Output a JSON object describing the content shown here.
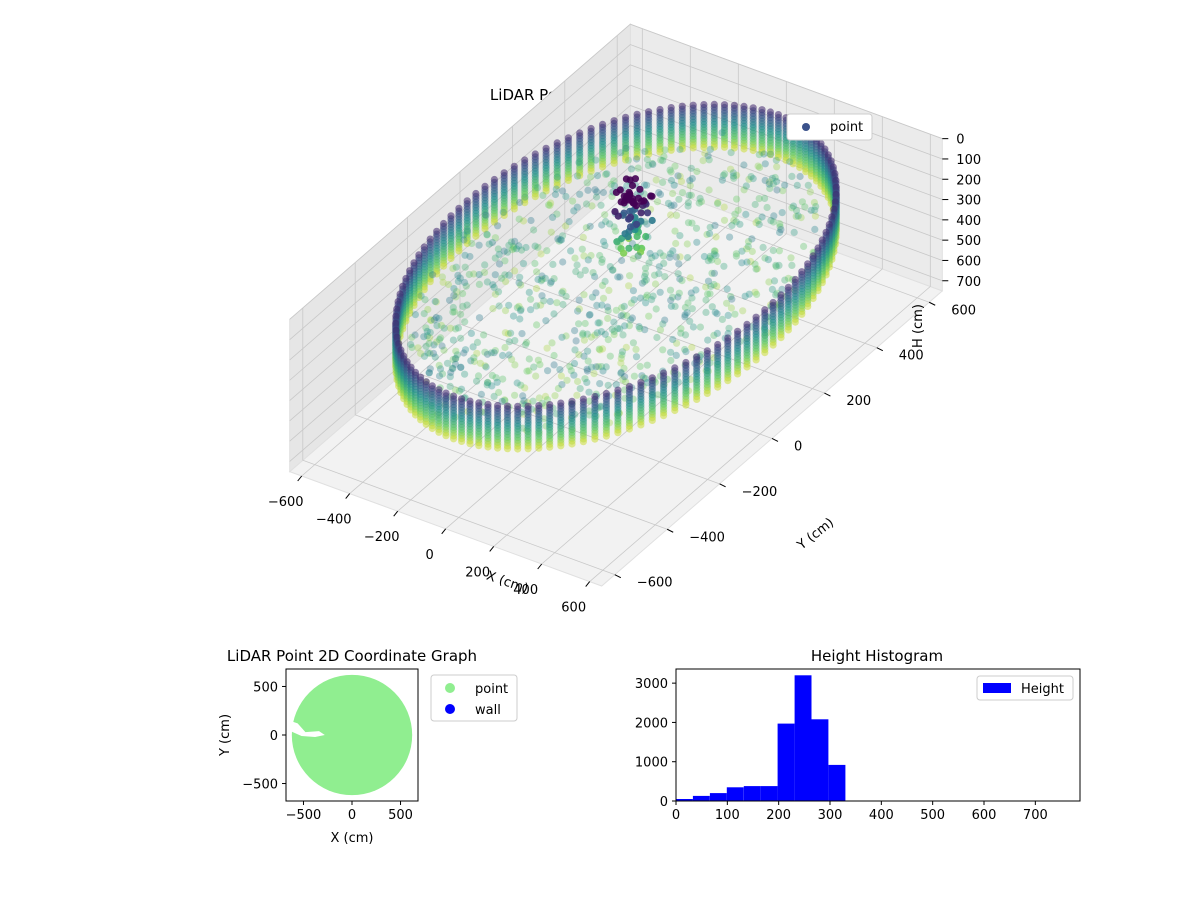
{
  "chart_data": [
    {
      "type": "scatter",
      "projection": "3d",
      "title": "LiDAR Point 3D Coordinate Graph",
      "xlabel": "X (cm)",
      "ylabel": "Y (cm)",
      "zlabel": "H (cm)",
      "xticks": [
        -600,
        -400,
        -200,
        0,
        200,
        400,
        600
      ],
      "yticks": [
        -600,
        -400,
        -200,
        0,
        200,
        400,
        600
      ],
      "zticks": [
        0,
        100,
        200,
        300,
        400,
        500,
        600,
        700
      ],
      "xlim": [
        -650,
        650
      ],
      "ylim": [
        -650,
        650
      ],
      "zlim": [
        750,
        0
      ],
      "z_axis_inverted": true,
      "colormap": "viridis",
      "legend_position": "upper right",
      "grid": true,
      "series": [
        {
          "name": "point",
          "color": "#3b528b",
          "shape": "cylindrical wall",
          "wall_radius_cm": 620,
          "wall_height_range_cm": [
            130,
            350
          ],
          "floor_height_range_cm": [
            200,
            330
          ],
          "center_tower_height_cm": [
            0,
            320
          ]
        }
      ]
    },
    {
      "type": "scatter",
      "title": "LiDAR Point 2D Coordinate Graph",
      "xlabel": "X (cm)",
      "ylabel": "Y (cm)",
      "xticks": [
        -500,
        0,
        500
      ],
      "yticks": [
        -500,
        0,
        500
      ],
      "xlim": [
        -680,
        680
      ],
      "ylim": [
        -680,
        680
      ],
      "legend_position": "outside right",
      "series": [
        {
          "name": "point",
          "color": "#90ee90",
          "shape": "filled disk",
          "radius_cm": 620
        },
        {
          "name": "wall",
          "color": "#0000ff"
        }
      ]
    },
    {
      "type": "bar",
      "subtype": "histogram",
      "title": "Height Histogram",
      "xticks": [
        0,
        100,
        200,
        300,
        400,
        500,
        600,
        700
      ],
      "yticks": [
        0,
        1000,
        2000,
        3000
      ],
      "xlim": [
        0,
        787
      ],
      "ylim": [
        0,
        3360
      ],
      "legend_position": "upper right",
      "bin_width": 33,
      "bin_edges": [
        0,
        33,
        66,
        99,
        132,
        165,
        198,
        231,
        264,
        297,
        330,
        363,
        396,
        429,
        462,
        495,
        528,
        561,
        594,
        627,
        660,
        693,
        726,
        759
      ],
      "series": [
        {
          "name": "Height",
          "color": "#0000ff",
          "values": [
            50,
            130,
            200,
            350,
            380,
            380,
            1970,
            3200,
            2080,
            920,
            0,
            0,
            0,
            0,
            0,
            0,
            0,
            0,
            0,
            0,
            0,
            0,
            0
          ]
        }
      ]
    }
  ]
}
